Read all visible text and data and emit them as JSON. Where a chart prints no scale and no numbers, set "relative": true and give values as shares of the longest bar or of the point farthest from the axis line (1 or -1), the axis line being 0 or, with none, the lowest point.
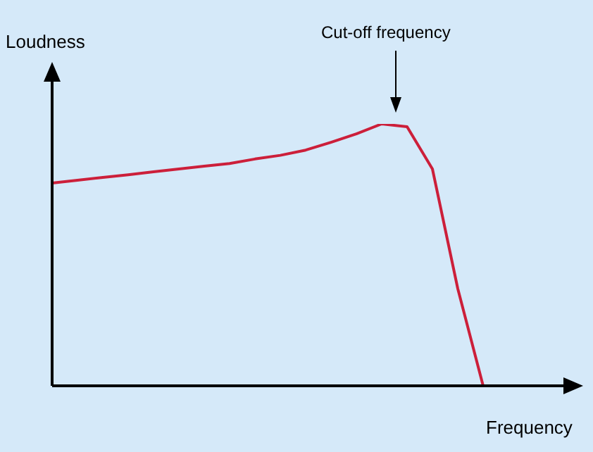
{
  "chart_data": {
    "type": "line",
    "relative": true,
    "xlabel": "Frequency",
    "ylabel": "Loudness",
    "annotations": [
      "Cut-off frequency"
    ],
    "categories": [
      null,
      null,
      null,
      null,
      null,
      null,
      null,
      null,
      null,
      null,
      null,
      null,
      null,
      null,
      null,
      null,
      null,
      null,
      null,
      null,
      null
    ],
    "series": [
      {
        "color": "#cc1f3a",
        "values": [
          0.774,
          0.785,
          0.796,
          0.806,
          0.817,
          0.828,
          0.839,
          0.849,
          0.866,
          0.88,
          0.9,
          0.93,
          0.962,
          1,
          0.989,
          0.828,
          0.371,
          0,
          null,
          null,
          null
        ]
      }
    ],
    "marker": "none",
    "grid": false,
    "legend": false
  }
}
